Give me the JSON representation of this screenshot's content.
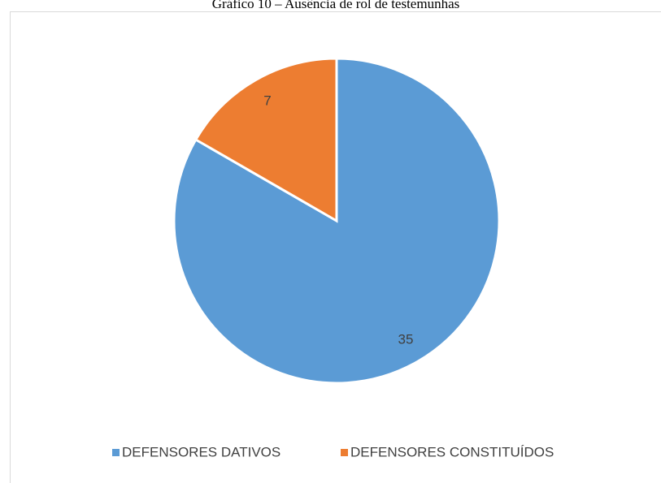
{
  "chart_data": {
    "type": "pie",
    "title": "Gráfico 10 – Ausência de rol de testemunhas",
    "categories": [
      "DEFENSORES DATIVOS",
      "DEFENSORES CONSTITUÍDOS"
    ],
    "values": [
      35,
      7
    ],
    "colors": [
      "#5b9bd5",
      "#ed7d31"
    ],
    "legend": "bottom"
  }
}
